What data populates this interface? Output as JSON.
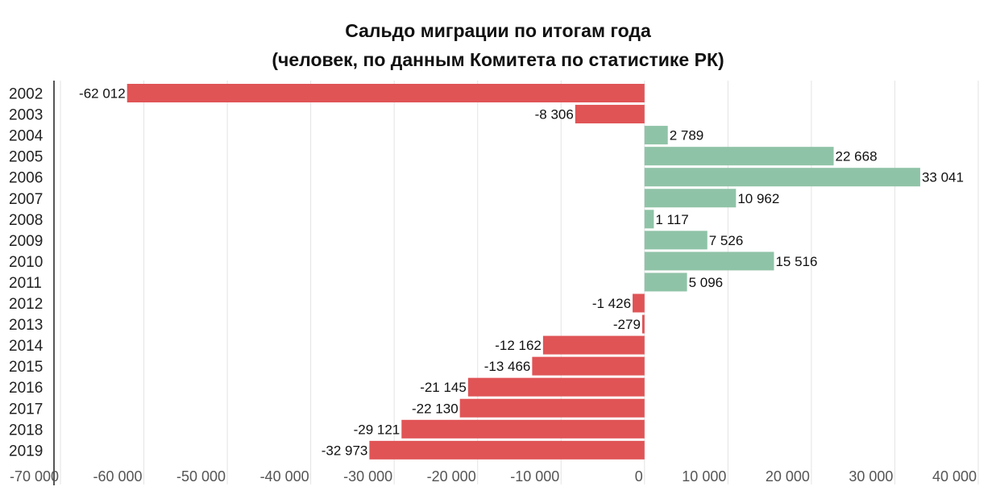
{
  "chart_data": {
    "type": "bar",
    "orientation": "horizontal",
    "title": "Сальдо миграции по итогам года",
    "subtitle": "(человек, по данным Комитета по статистике РК)",
    "categories": [
      "2002",
      "2003",
      "2004",
      "2005",
      "2006",
      "2007",
      "2008",
      "2009",
      "2010",
      "2011",
      "2012",
      "2013",
      "2014",
      "2015",
      "2016",
      "2017",
      "2018",
      "2019"
    ],
    "values": [
      -62012,
      -8306,
      2789,
      22668,
      33041,
      10962,
      1117,
      7526,
      15516,
      5096,
      -1426,
      -279,
      -12162,
      -13466,
      -21145,
      -22130,
      -29121,
      -32973
    ],
    "data_labels": [
      "-62 012",
      "-8 306",
      "2 789",
      "22 668",
      "33 041",
      "10 962",
      "1 117",
      "7 526",
      "15 516",
      "5 096",
      "-1 426",
      "-279",
      "-12 162",
      "-13 466",
      "-21 145",
      "-22 130",
      "-29 121",
      "-32 973"
    ],
    "xlim": [
      -70000,
      40000
    ],
    "x_ticks": [
      -70000,
      -60000,
      -50000,
      -40000,
      -30000,
      -20000,
      -10000,
      0,
      10000,
      20000,
      30000,
      40000
    ],
    "x_tick_labels": [
      "-70 000",
      "-60 000",
      "-50 000",
      "-40 000",
      "-30 000",
      "-20 000",
      "-10 000",
      "0",
      "10 000",
      "20 000",
      "30 000",
      "40 000"
    ],
    "xlabel": "",
    "ylabel": "",
    "grid": true,
    "legend": "none",
    "colors": {
      "positive": "#8fc3a7",
      "negative": "#e05456",
      "grid": "#e3e3e3",
      "axis": "#555555"
    }
  }
}
